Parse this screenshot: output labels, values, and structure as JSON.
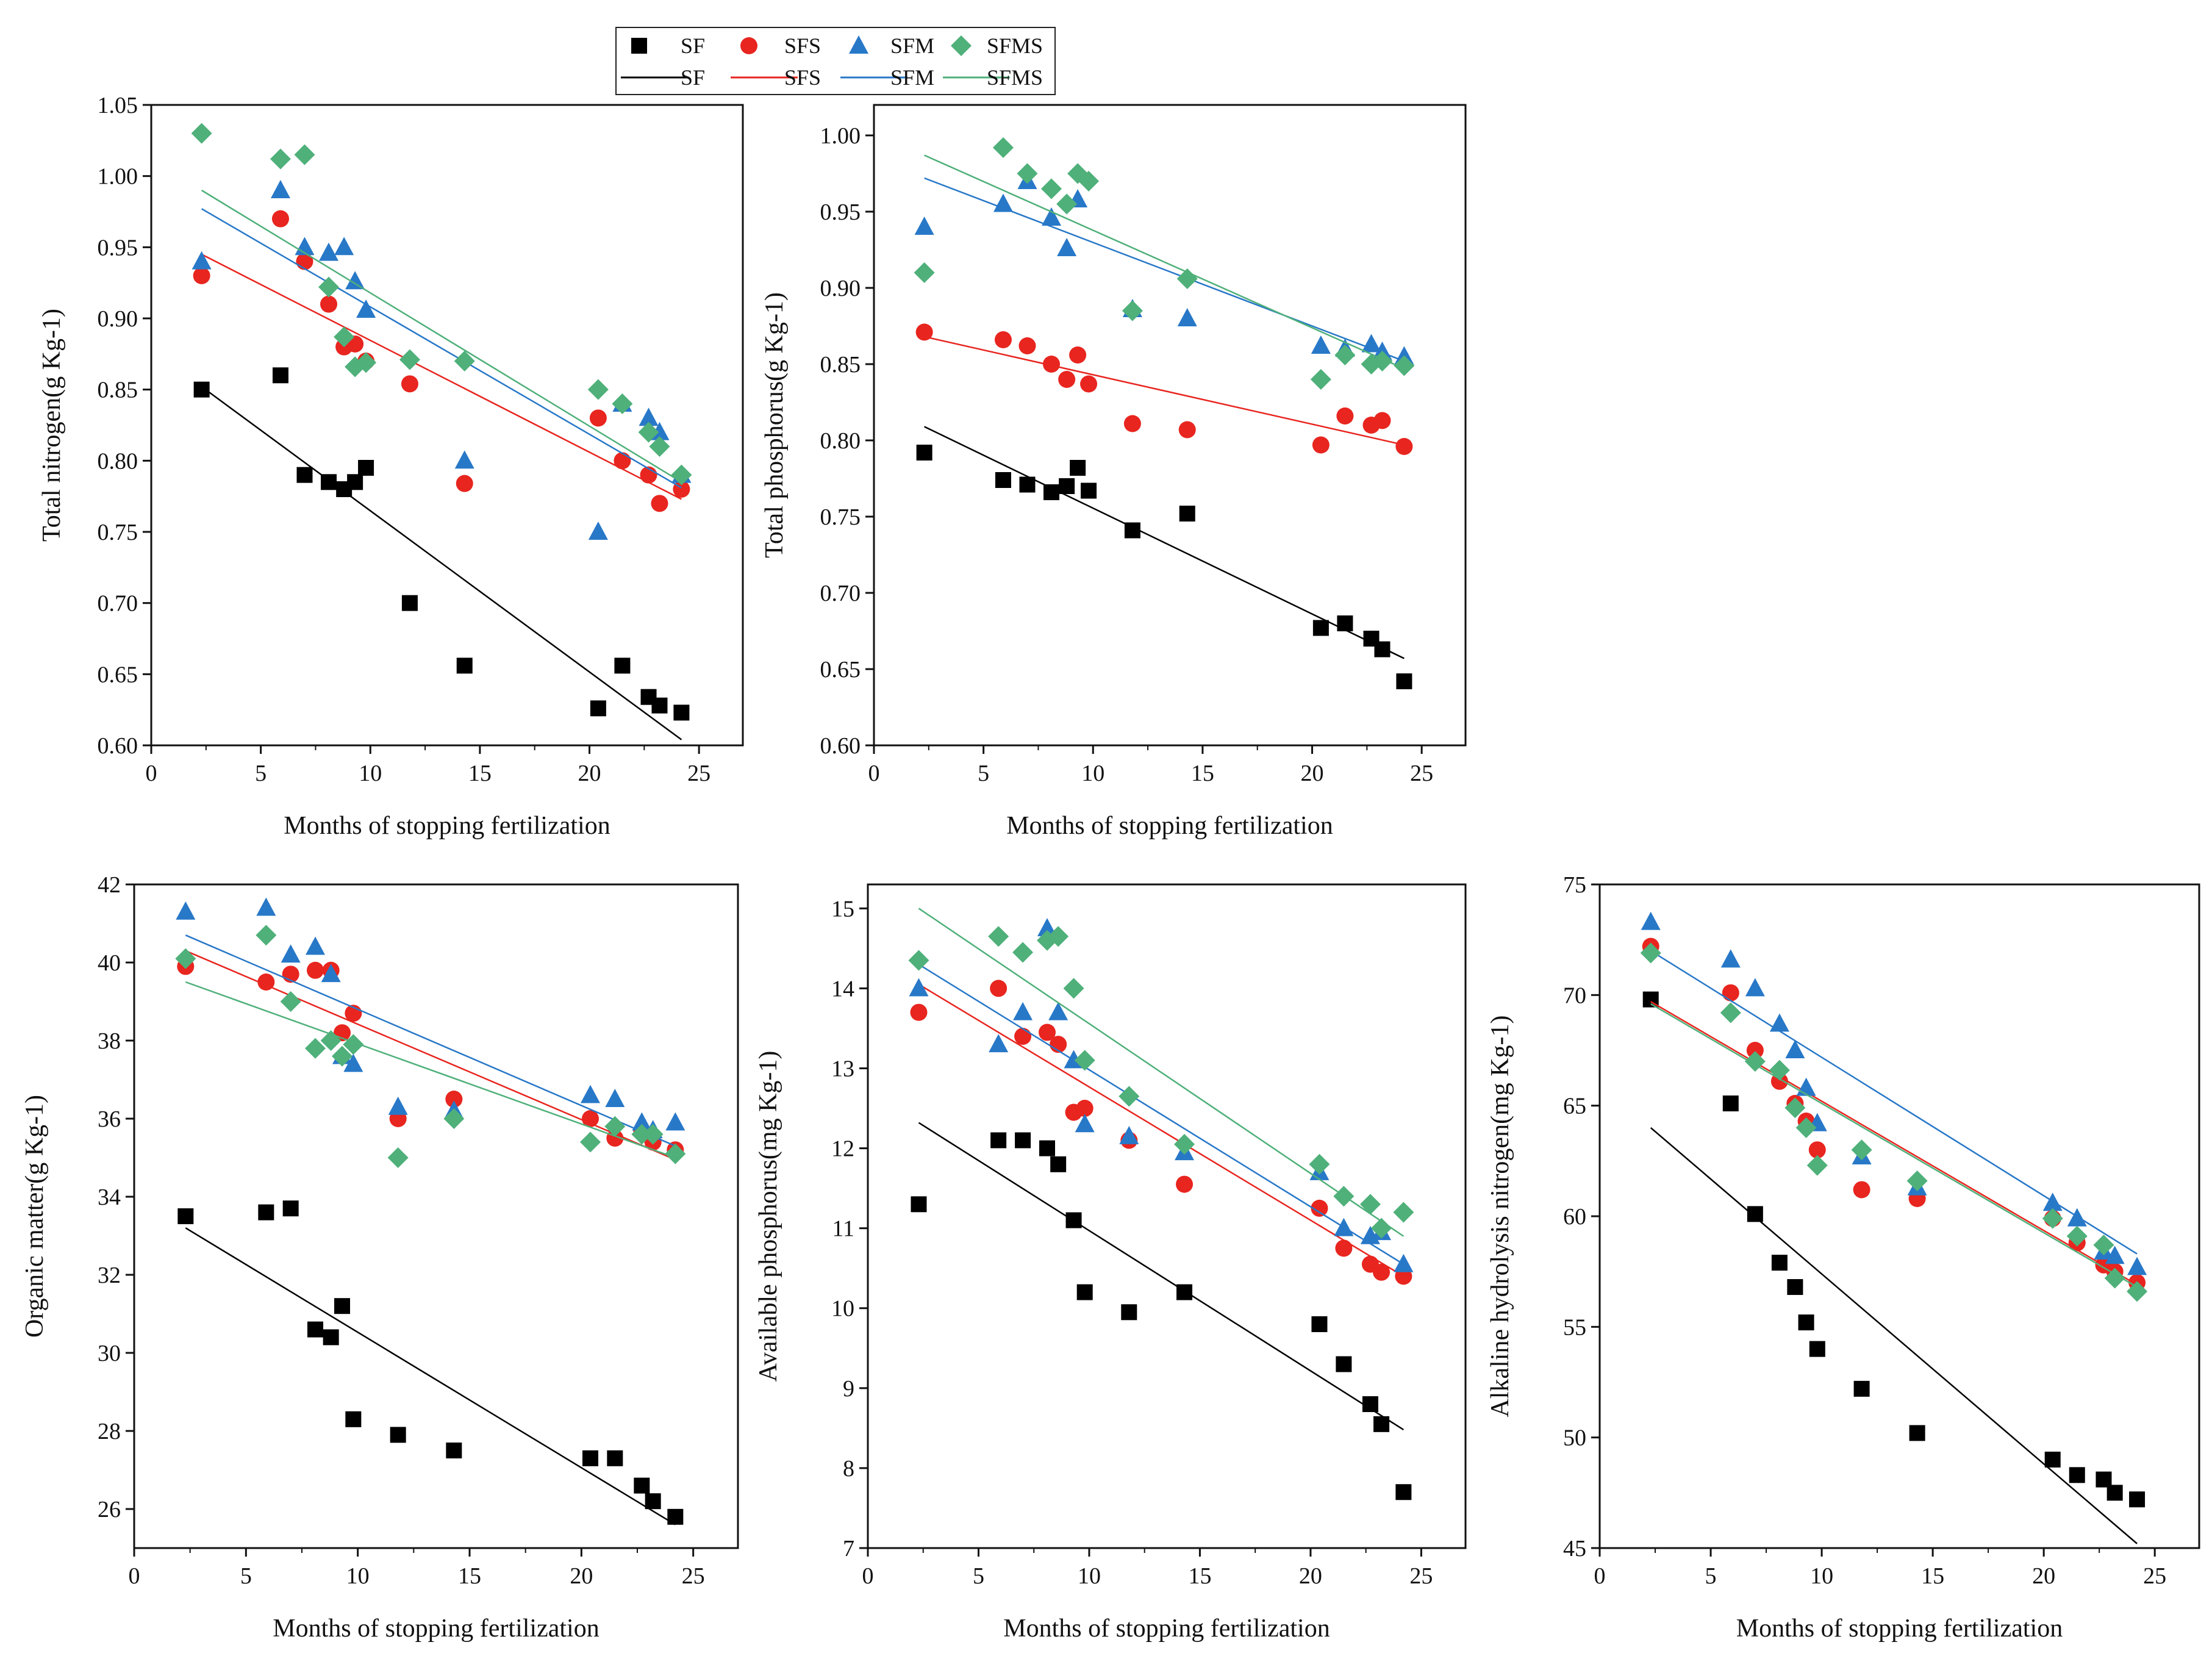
{
  "series_styles": {
    "SF": {
      "color": "#000000",
      "marker": "square"
    },
    "SFS": {
      "color": "#e8251f",
      "marker": "circle"
    },
    "SFM": {
      "color": "#2878c8",
      "marker": "triangle"
    },
    "SFMS": {
      "color": "#4fb07a",
      "marker": "diamond"
    }
  },
  "legend": {
    "markers": [
      "SF",
      "SFS",
      "SFM",
      "SFMS"
    ],
    "lines": [
      "SF",
      "SFS",
      "SFM",
      "SFMS"
    ]
  },
  "chart_data": [
    {
      "type": "scatter",
      "title": "",
      "xlabel": "Months of stopping fertilization",
      "ylabel": "Total nitrogen(g Kg-1)",
      "xlim": [
        0,
        27
      ],
      "ylim": [
        0.6,
        1.05
      ],
      "xticks": [
        0,
        5,
        10,
        15,
        20,
        25
      ],
      "yticks": [
        0.6,
        0.65,
        0.7,
        0.75,
        0.8,
        0.85,
        0.9,
        0.95,
        1.0,
        1.05
      ],
      "yticklabels": [
        "0.60",
        "0.65",
        "0.70",
        "0.75",
        "0.80",
        "0.85",
        "0.90",
        "0.95",
        "1.00",
        "1.05"
      ],
      "series": [
        {
          "name": "SF",
          "x": [
            2.3,
            5.9,
            7,
            8.1,
            8.8,
            9.3,
            9.8,
            11.8,
            14.3,
            20.4,
            21.5,
            22.7,
            23.2,
            24.2
          ],
          "y": [
            0.85,
            0.86,
            0.79,
            0.785,
            0.78,
            0.785,
            0.795,
            0.7,
            0.656,
            0.626,
            0.656,
            0.634,
            0.628,
            0.623
          ],
          "fit": [
            [
              2.3,
              0.852
            ],
            [
              24.2,
              0.604
            ]
          ]
        },
        {
          "name": "SFS",
          "x": [
            2.3,
            5.9,
            7,
            8.1,
            8.8,
            9.3,
            9.8,
            11.8,
            14.3,
            20.4,
            21.5,
            22.7,
            23.2,
            24.2
          ],
          "y": [
            0.93,
            0.97,
            0.94,
            0.91,
            0.88,
            0.882,
            0.87,
            0.854,
            0.784,
            0.83,
            0.8,
            0.79,
            0.77,
            0.78
          ],
          "fit": [
            [
              2.3,
              0.945
            ],
            [
              24.2,
              0.773
            ]
          ]
        },
        {
          "name": "SFM",
          "x": [
            2.3,
            5.9,
            7,
            8.1,
            8.8,
            9.3,
            9.8,
            14.3,
            20.4,
            21.5,
            22.7,
            23.2,
            24.2
          ],
          "y": [
            0.94,
            0.99,
            0.95,
            0.946,
            0.95,
            0.926,
            0.906,
            0.8,
            0.75,
            0.84,
            0.83,
            0.82,
            0.79
          ],
          "fit": [
            [
              2.3,
              0.977
            ],
            [
              24.2,
              0.781
            ]
          ]
        },
        {
          "name": "SFMS",
          "x": [
            2.3,
            5.9,
            7,
            8.1,
            8.8,
            9.3,
            9.8,
            11.8,
            14.3,
            20.4,
            21.5,
            22.7,
            23.2,
            24.2
          ],
          "y": [
            1.03,
            1.012,
            1.015,
            0.922,
            0.887,
            0.866,
            0.869,
            0.871,
            0.87,
            0.85,
            0.84,
            0.82,
            0.81,
            0.79
          ],
          "fit": [
            [
              2.3,
              0.99
            ],
            [
              24.2,
              0.785
            ]
          ]
        }
      ]
    },
    {
      "type": "scatter",
      "title": "",
      "xlabel": "Months of stopping fertilization",
      "ylabel": "Total phosphorus(g Kg-1)",
      "xlim": [
        0,
        27
      ],
      "ylim": [
        0.6,
        1.02
      ],
      "xticks": [
        0,
        5,
        10,
        15,
        20,
        25
      ],
      "yticks": [
        0.6,
        0.65,
        0.7,
        0.75,
        0.8,
        0.85,
        0.9,
        0.95,
        1.0
      ],
      "yticklabels": [
        "0.60",
        "0.65",
        "0.70",
        "0.75",
        "0.80",
        "0.85",
        "0.90",
        "0.95",
        "1.00"
      ],
      "series": [
        {
          "name": "SF",
          "x": [
            2.3,
            5.9,
            7,
            8.1,
            8.8,
            9.3,
            9.8,
            11.8,
            14.3,
            20.4,
            21.5,
            22.7,
            23.2,
            24.2
          ],
          "y": [
            0.792,
            0.774,
            0.771,
            0.766,
            0.77,
            0.782,
            0.767,
            0.741,
            0.752,
            0.677,
            0.68,
            0.67,
            0.663,
            0.642
          ],
          "fit": [
            [
              2.3,
              0.809
            ],
            [
              24.2,
              0.657
            ]
          ]
        },
        {
          "name": "SFS",
          "x": [
            2.3,
            5.9,
            7,
            8.1,
            8.8,
            9.3,
            9.8,
            11.8,
            14.3,
            20.4,
            21.5,
            22.7,
            23.2,
            24.2
          ],
          "y": [
            0.871,
            0.866,
            0.862,
            0.85,
            0.84,
            0.856,
            0.837,
            0.811,
            0.807,
            0.797,
            0.816,
            0.81,
            0.813,
            0.796
          ],
          "fit": [
            [
              2.3,
              0.868
            ],
            [
              24.2,
              0.797
            ]
          ]
        },
        {
          "name": "SFM",
          "x": [
            2.3,
            5.9,
            7,
            8.1,
            8.8,
            9.3,
            11.8,
            14.3,
            20.4,
            21.5,
            22.7,
            23.2,
            24.2
          ],
          "y": [
            0.94,
            0.955,
            0.97,
            0.946,
            0.926,
            0.958,
            0.886,
            0.88,
            0.862,
            0.86,
            0.863,
            0.858,
            0.855
          ],
          "fit": [
            [
              2.3,
              0.972
            ],
            [
              24.2,
              0.852
            ]
          ]
        },
        {
          "name": "SFMS",
          "x": [
            2.3,
            5.9,
            7,
            8.1,
            8.8,
            9.3,
            9.8,
            11.8,
            14.3,
            20.4,
            21.5,
            22.7,
            23.2,
            24.2
          ],
          "y": [
            0.91,
            0.992,
            0.975,
            0.965,
            0.955,
            0.975,
            0.97,
            0.885,
            0.906,
            0.84,
            0.856,
            0.85,
            0.852,
            0.849
          ],
          "fit": [
            [
              2.3,
              0.987
            ],
            [
              24.2,
              0.847
            ]
          ]
        }
      ]
    },
    {
      "type": "scatter",
      "title": "",
      "xlabel": "Months of stopping fertilization",
      "ylabel": "Organic matter(g Kg-1)",
      "xlim": [
        0,
        27
      ],
      "ylim": [
        25,
        42
      ],
      "xticks": [
        0,
        5,
        10,
        15,
        20,
        25
      ],
      "yticks": [
        26,
        28,
        30,
        32,
        34,
        36,
        38,
        40,
        42
      ],
      "yticklabels": [
        "26",
        "28",
        "30",
        "32",
        "34",
        "36",
        "38",
        "40",
        "42"
      ],
      "series": [
        {
          "name": "SF",
          "x": [
            2.3,
            5.9,
            7,
            8.1,
            8.8,
            9.3,
            9.8,
            11.8,
            14.3,
            20.4,
            21.5,
            22.7,
            23.2,
            24.2
          ],
          "y": [
            33.5,
            33.6,
            33.7,
            30.6,
            30.4,
            31.2,
            28.3,
            27.9,
            27.5,
            27.3,
            27.3,
            26.6,
            26.2,
            25.8
          ],
          "fit": [
            [
              2.3,
              33.2
            ],
            [
              24.2,
              25.6
            ]
          ]
        },
        {
          "name": "SFS",
          "x": [
            2.3,
            5.9,
            7,
            8.1,
            8.8,
            9.3,
            9.8,
            11.8,
            14.3,
            20.4,
            21.5,
            22.7,
            23.2,
            24.2
          ],
          "y": [
            39.9,
            39.5,
            39.7,
            39.8,
            39.8,
            38.2,
            38.7,
            36.0,
            36.5,
            36.0,
            35.5,
            35.7,
            35.4,
            35.2
          ],
          "fit": [
            [
              2.3,
              40.3
            ],
            [
              24.2,
              34.95
            ]
          ]
        },
        {
          "name": "SFM",
          "x": [
            2.3,
            5.9,
            7,
            8.1,
            8.8,
            9.3,
            9.8,
            11.8,
            14.3,
            20.4,
            21.5,
            22.7,
            23.2,
            24.2
          ],
          "y": [
            41.3,
            41.4,
            40.2,
            40.4,
            39.7,
            37.6,
            37.4,
            36.3,
            36.2,
            36.6,
            36.5,
            35.9,
            35.7,
            35.9
          ],
          "fit": [
            [
              2.3,
              40.7
            ],
            [
              24.2,
              35.3
            ]
          ]
        },
        {
          "name": "SFMS",
          "x": [
            2.3,
            5.9,
            7,
            8.1,
            8.8,
            9.3,
            9.8,
            11.8,
            14.3,
            20.4,
            21.5,
            22.7,
            23.2,
            24.2
          ],
          "y": [
            40.1,
            40.7,
            39.0,
            37.8,
            38.0,
            37.6,
            37.9,
            35.0,
            36.0,
            35.4,
            35.8,
            35.6,
            35.6,
            35.1
          ],
          "fit": [
            [
              2.3,
              39.5
            ],
            [
              24.2,
              35.0
            ]
          ]
        }
      ]
    },
    {
      "type": "scatter",
      "title": "",
      "xlabel": "Months of stopping fertilization",
      "ylabel": "Available phosphorus(mg Kg-1)",
      "xlim": [
        0,
        27
      ],
      "ylim": [
        7,
        15.3
      ],
      "xticks": [
        0,
        5,
        10,
        15,
        20,
        25
      ],
      "yticks": [
        7,
        8,
        9,
        10,
        11,
        12,
        13,
        14,
        15
      ],
      "yticklabels": [
        "7",
        "8",
        "9",
        "10",
        "11",
        "12",
        "13",
        "14",
        "15"
      ],
      "series": [
        {
          "name": "SF",
          "x": [
            2.3,
            5.9,
            7,
            8.1,
            8.6,
            9.3,
            9.8,
            11.8,
            14.3,
            20.4,
            21.5,
            22.7,
            23.2,
            24.2
          ],
          "y": [
            11.3,
            12.1,
            12.1,
            12.0,
            11.8,
            11.1,
            10.2,
            9.95,
            10.2,
            9.8,
            9.3,
            8.8,
            8.55,
            7.7
          ],
          "fit": [
            [
              2.3,
              12.32
            ],
            [
              24.2,
              8.48
            ]
          ]
        },
        {
          "name": "SFS",
          "x": [
            2.3,
            5.9,
            7,
            8.1,
            8.6,
            9.3,
            9.8,
            11.8,
            14.3,
            20.4,
            21.5,
            22.7,
            23.2,
            24.2
          ],
          "y": [
            13.7,
            14.0,
            13.4,
            13.45,
            13.3,
            12.45,
            12.5,
            12.1,
            11.55,
            11.25,
            10.75,
            10.55,
            10.45,
            10.4
          ],
          "fit": [
            [
              2.3,
              14.05
            ],
            [
              24.2,
              10.4
            ]
          ]
        },
        {
          "name": "SFM",
          "x": [
            2.3,
            5.9,
            7,
            8.1,
            8.6,
            9.3,
            9.8,
            11.8,
            14.3,
            20.4,
            21.5,
            22.7,
            23.2,
            24.2
          ],
          "y": [
            14.0,
            13.3,
            13.7,
            14.75,
            13.7,
            13.1,
            12.3,
            12.15,
            11.95,
            11.7,
            11.0,
            10.9,
            10.95,
            10.55
          ],
          "fit": [
            [
              2.3,
              14.3
            ],
            [
              24.2,
              10.55
            ]
          ]
        },
        {
          "name": "SFMS",
          "x": [
            2.3,
            5.9,
            7,
            8.1,
            8.6,
            9.3,
            9.8,
            11.8,
            14.3,
            20.4,
            21.5,
            22.7,
            23.2,
            24.2
          ],
          "y": [
            14.35,
            14.65,
            14.45,
            14.6,
            14.65,
            14.0,
            13.1,
            12.65,
            12.05,
            11.8,
            11.4,
            11.3,
            11.0,
            11.2
          ],
          "fit": [
            [
              2.3,
              15.0
            ],
            [
              24.2,
              10.9
            ]
          ]
        }
      ]
    },
    {
      "type": "scatter",
      "title": "",
      "xlabel": "Months of stopping fertilization",
      "ylabel": "Alkaline hydrolysis nitrogen(mg Kg-1)",
      "xlim": [
        0,
        27
      ],
      "ylim": [
        45,
        75
      ],
      "xticks": [
        0,
        5,
        10,
        15,
        20,
        25
      ],
      "yticks": [
        45,
        50,
        55,
        60,
        65,
        70,
        75
      ],
      "yticklabels": [
        "45",
        "50",
        "55",
        "60",
        "65",
        "70",
        "75"
      ],
      "series": [
        {
          "name": "SF",
          "x": [
            2.3,
            5.9,
            7,
            8.1,
            8.8,
            9.3,
            9.8,
            11.8,
            14.3,
            20.4,
            21.5,
            22.7,
            23.2,
            24.2
          ],
          "y": [
            69.8,
            65.1,
            60.1,
            57.9,
            56.8,
            55.2,
            54.0,
            52.2,
            50.2,
            49.0,
            48.3,
            48.1,
            47.5,
            47.2
          ],
          "fit": [
            [
              2.3,
              64.0
            ],
            [
              24.2,
              45.2
            ]
          ]
        },
        {
          "name": "SFS",
          "x": [
            2.3,
            5.9,
            7,
            8.1,
            8.8,
            9.3,
            9.8,
            11.8,
            14.3,
            20.4,
            21.5,
            22.7,
            23.2,
            24.2
          ],
          "y": [
            72.2,
            70.1,
            67.5,
            66.1,
            65.1,
            64.3,
            63.0,
            61.2,
            60.8,
            59.9,
            58.8,
            57.8,
            57.5,
            57.0
          ],
          "fit": [
            [
              2.3,
              69.7
            ],
            [
              24.2,
              56.9
            ]
          ]
        },
        {
          "name": "SFM",
          "x": [
            2.3,
            5.9,
            7,
            8.1,
            8.8,
            9.3,
            9.8,
            11.8,
            14.3,
            20.4,
            21.5,
            22.7,
            23.2,
            24.2
          ],
          "y": [
            73.3,
            71.6,
            70.3,
            68.7,
            67.5,
            65.8,
            64.2,
            62.7,
            61.3,
            60.6,
            59.9,
            58.4,
            58.2,
            57.7
          ],
          "fit": [
            [
              2.3,
              72.0
            ],
            [
              24.2,
              58.3
            ]
          ]
        },
        {
          "name": "SFMS",
          "x": [
            2.3,
            5.9,
            7,
            8.1,
            8.8,
            9.3,
            9.8,
            11.8,
            14.3,
            20.4,
            21.5,
            22.7,
            23.2,
            24.2
          ],
          "y": [
            71.9,
            69.2,
            67.0,
            66.6,
            64.9,
            64.0,
            62.3,
            63.0,
            61.6,
            59.9,
            59.1,
            58.7,
            57.2,
            56.6
          ],
          "fit": [
            [
              2.3,
              69.6
            ],
            [
              24.2,
              56.8
            ]
          ]
        }
      ]
    }
  ]
}
